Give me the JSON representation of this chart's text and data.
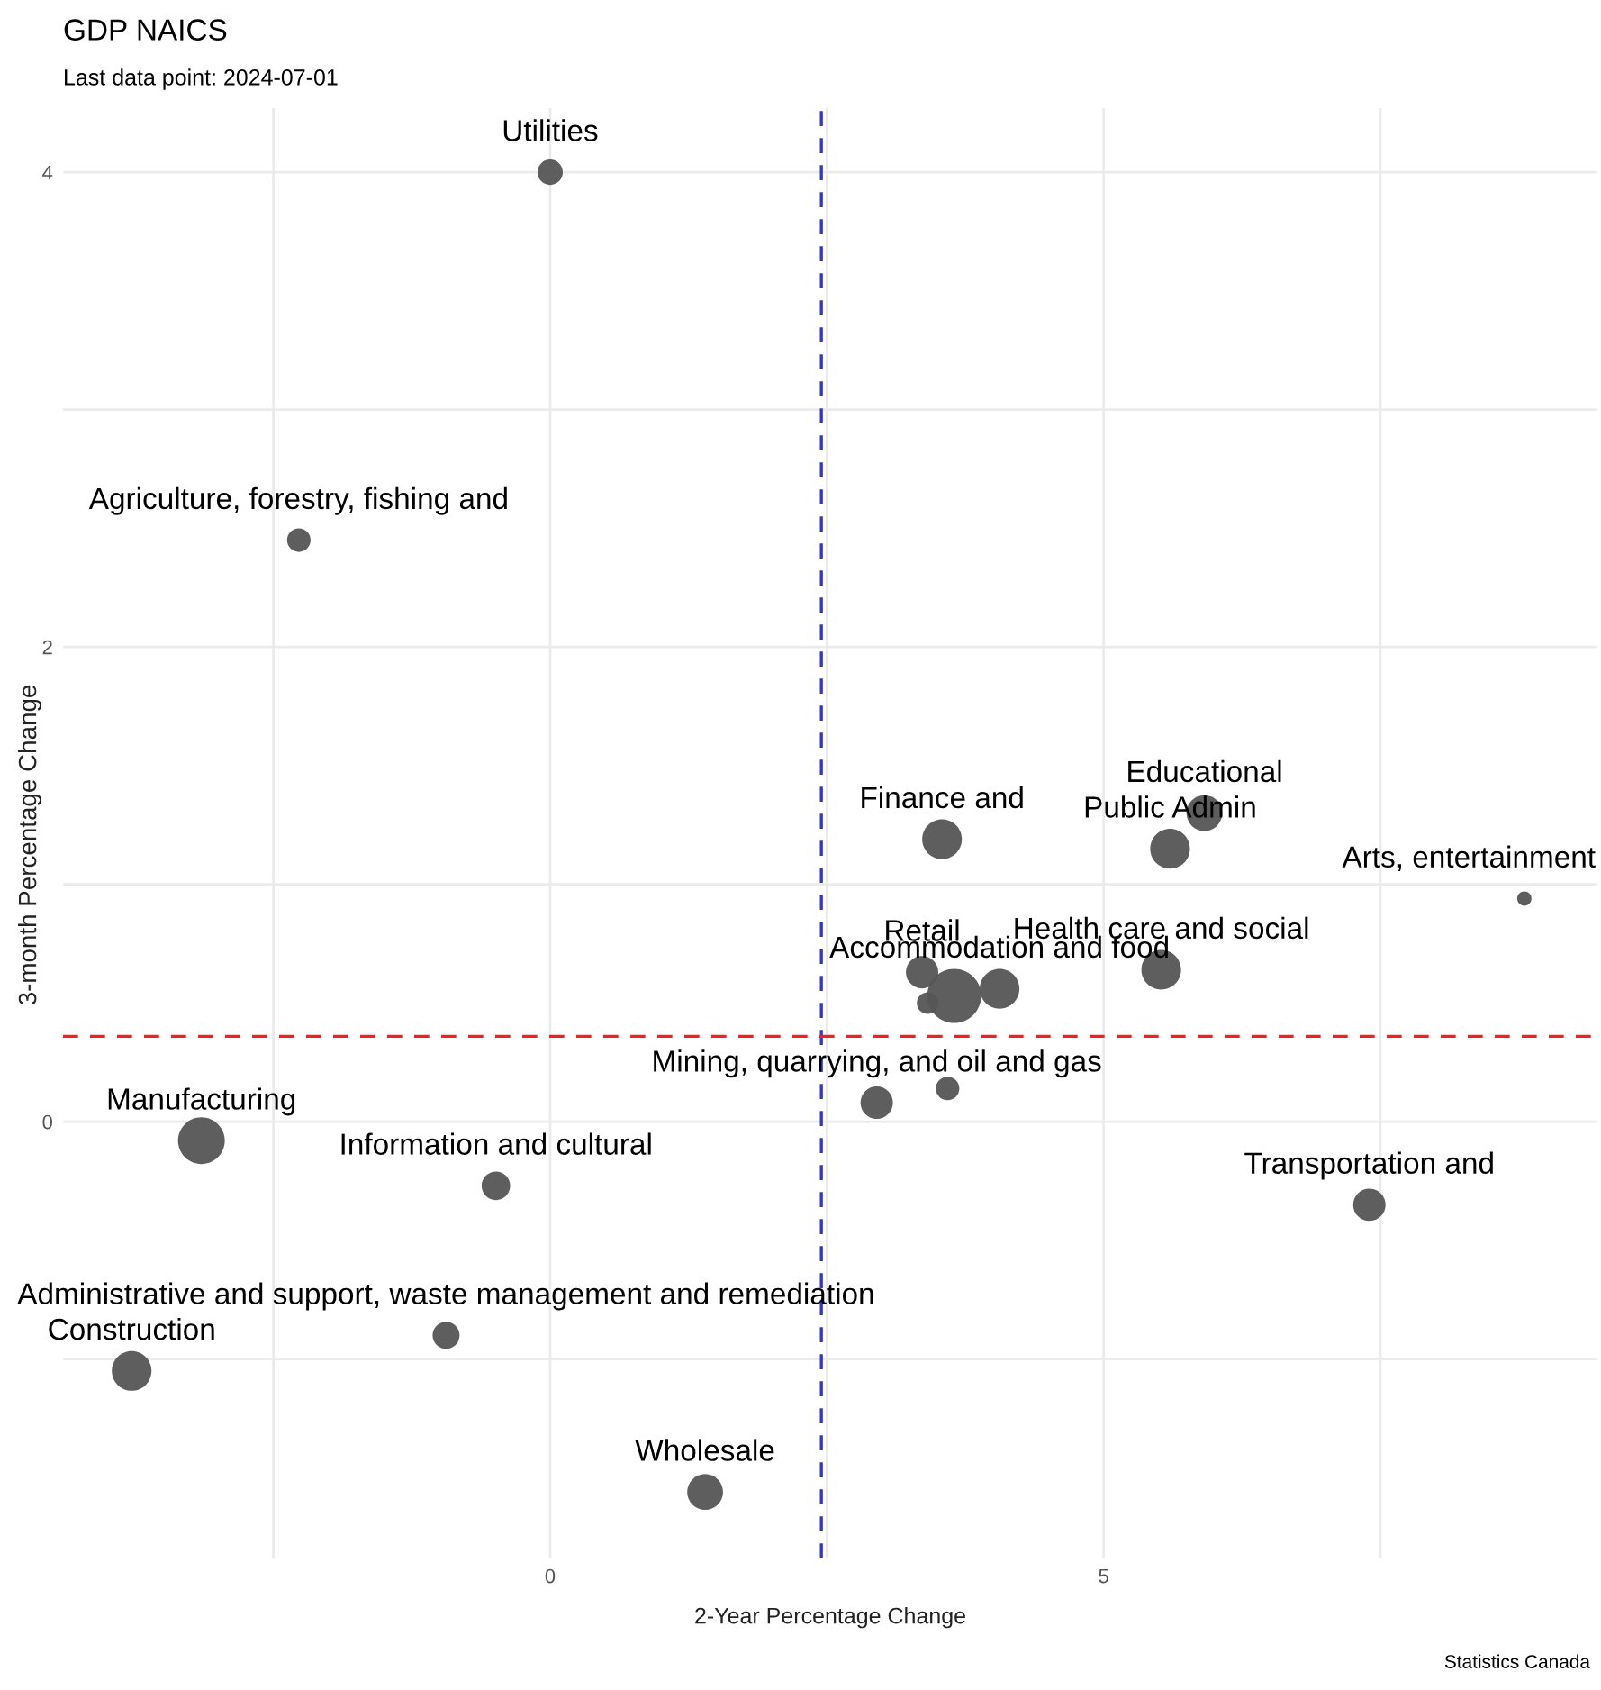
{
  "chart_data": {
    "type": "bubble",
    "title": "GDP NAICS",
    "subtitle": "Last data point: 2024-07-01",
    "xlabel": "2-Year Percentage Change",
    "ylabel": "3-month Percentage Change",
    "x": [
      0.0,
      -2.27,
      5.91,
      5.6,
      3.54,
      8.8,
      5.52,
      3.36,
      3.41,
      3.65,
      4.06,
      3.59,
      2.95,
      -3.15,
      -0.49,
      7.4,
      -0.94,
      -3.78,
      1.4
    ],
    "series": [
      {
        "color": "#555555",
        "values": [
          4.0,
          2.45,
          1.3,
          1.15,
          1.19,
          0.94,
          0.64,
          0.63,
          0.5,
          0.53,
          0.56,
          0.14,
          0.08,
          -0.08,
          -0.27,
          -0.35,
          -0.9,
          -1.05,
          -1.56
        ],
        "sizes": [
          0.22,
          0.19,
          0.44,
          0.54,
          0.54,
          0.07,
          0.54,
          0.36,
          0.16,
          1,
          0.54,
          0.19,
          0.36,
          0.75,
          0.28,
          0.36,
          0.25,
          0.54,
          0.44
        ]
      }
    ],
    "xlim": [
      -4.4,
      9.46
    ],
    "ylim": [
      -1.84,
      4.27
    ],
    "xticks": [
      {
        "value": -2.5,
        "label": null
      },
      0,
      {
        "value": 2.5,
        "label": null
      },
      5,
      {
        "value": 7.5,
        "label": null
      }
    ],
    "yticks": [
      {
        "value": -1,
        "label": null
      },
      0,
      {
        "value": 1,
        "label": null
      },
      2,
      {
        "value": 3,
        "label": null
      },
      4
    ],
    "grid": true,
    "ref_lines": [
      {
        "axis": "x",
        "value": 2.45,
        "color": "#3333dd",
        "line_style": "dashed"
      },
      {
        "axis": "y",
        "value": 0.36,
        "color": "#ee2222",
        "line_style": "dashed"
      }
    ],
    "annotations": [
      {
        "text": "Utilities",
        "x": 0.0,
        "y": 4.0
      },
      {
        "text": "Agriculture, forestry, fishing and",
        "x": -2.27,
        "y": 2.45
      },
      {
        "text": "Educational",
        "x": 5.91,
        "y": 1.3
      },
      {
        "text": "Public Admin",
        "x": 5.6,
        "y": 1.15
      },
      {
        "text": "Finance and",
        "x": 3.54,
        "y": 1.19
      },
      {
        "text": "Arts, entertainment",
        "x": 8.8,
        "y": 0.94
      },
      {
        "text": "Health care and social",
        "x": 5.52,
        "y": 0.64
      },
      {
        "text": "Retail",
        "x": 3.36,
        "y": 0.63
      },
      {
        "text": "Accommodation and food",
        "x": 4.06,
        "y": 0.56
      },
      {
        "text": "Mining, quarrying, and oil and gas",
        "x": 2.95,
        "y": 0.08
      },
      {
        "text": "Manufacturing",
        "x": -3.15,
        "y": -0.08
      },
      {
        "text": "Information and cultural",
        "x": -0.49,
        "y": -0.27
      },
      {
        "text": "Transportation and",
        "x": 7.4,
        "y": -0.35
      },
      {
        "text": "Administrative and support, waste management and remediation",
        "x": -0.94,
        "y": -0.9
      },
      {
        "text": "Construction",
        "x": -3.78,
        "y": -1.05
      },
      {
        "text": "Wholesale",
        "x": 1.4,
        "y": -1.56
      },
      "Statistics Canada"
    ]
  }
}
